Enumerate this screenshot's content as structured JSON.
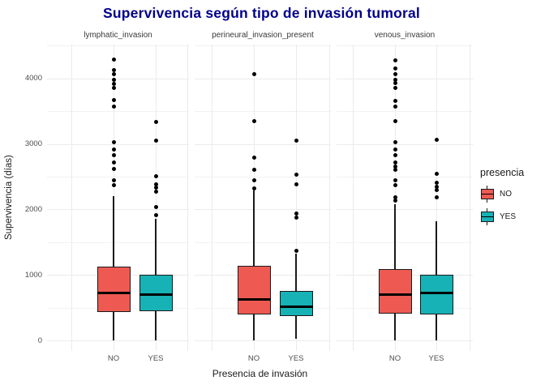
{
  "title": "Supervivencia según tipo de invasión tumoral",
  "y_axis": {
    "label": "Supervivencia (días)",
    "ticks": [
      "0",
      "1000",
      "2000",
      "3000",
      "4000"
    ]
  },
  "x_axis": {
    "label": "Presencia de invasión",
    "tick_labels": [
      "NO",
      "YES"
    ]
  },
  "legend": {
    "title": "presencia",
    "items": [
      {
        "label": "NO",
        "color": "#EE5A52"
      },
      {
        "label": "YES",
        "color": "#17B2B5"
      }
    ]
  },
  "colors": {
    "title": "#00008B",
    "grid_major": "#EBEBEB",
    "grid_minor": "#F2F2F2",
    "box_border": "#1a1a1a"
  },
  "chart_data": {
    "type": "boxplot",
    "title": "Supervivencia según tipo de invasión tumoral",
    "xlabel": "Presencia de invasión",
    "ylabel": "Supervivencia (días)",
    "ylim": [
      0,
      4500
    ],
    "yticks": [
      0,
      1000,
      2000,
      3000,
      4000
    ],
    "yminor": [
      500,
      1500,
      2500,
      3500,
      4500
    ],
    "grid": true,
    "legend_position": "right",
    "facets": [
      {
        "label": "lymphatic_invasion",
        "groups": [
          {
            "name": "NO",
            "fill": "#EE5A52",
            "whisker_low": 0,
            "q1": 430,
            "median": 730,
            "q3": 1130,
            "whisker_high": 2200,
            "outliers": [
              2370,
              2440,
              2620,
              2720,
              2830,
              2910,
              3030,
              3570,
              3670,
              3850,
              3920,
              3980,
              4060,
              4130,
              4290
            ]
          },
          {
            "name": "YES",
            "fill": "#17B2B5",
            "whisker_low": 0,
            "q1": 440,
            "median": 700,
            "q3": 1000,
            "whisker_high": 1860,
            "outliers": [
              1910,
              2030,
              2270,
              2330,
              2380,
              2510,
              3050,
              3330
            ]
          }
        ]
      },
      {
        "label": "perineural_invasion_present",
        "groups": [
          {
            "name": "NO",
            "fill": "#EE5A52",
            "whisker_low": 0,
            "q1": 390,
            "median": 630,
            "q3": 1140,
            "whisker_high": 2290,
            "outliers": [
              2320,
              2440,
              2610,
              2790,
              3350,
              4060
            ]
          },
          {
            "name": "YES",
            "fill": "#17B2B5",
            "whisker_low": 30,
            "q1": 370,
            "median": 510,
            "q3": 760,
            "whisker_high": 1320,
            "outliers": [
              1370,
              1870,
              1940,
              2380,
              2530,
              3050
            ]
          }
        ]
      },
      {
        "label": "venous_invasion",
        "groups": [
          {
            "name": "NO",
            "fill": "#EE5A52",
            "whisker_low": 0,
            "q1": 410,
            "median": 700,
            "q3": 1090,
            "whisker_high": 2080,
            "outliers": [
              2140,
              2190,
              2370,
              2450,
              2610,
              2660,
              2720,
              2830,
              2910,
              3020,
              3350,
              3570,
              3660,
              3850,
              3930,
              3980,
              4060,
              4150,
              4280
            ]
          },
          {
            "name": "YES",
            "fill": "#17B2B5",
            "whisker_low": 0,
            "q1": 400,
            "median": 730,
            "q3": 1000,
            "whisker_high": 1820,
            "outliers": [
              2190,
              2290,
              2350,
              2410,
              2540,
              3060
            ]
          }
        ]
      }
    ]
  }
}
